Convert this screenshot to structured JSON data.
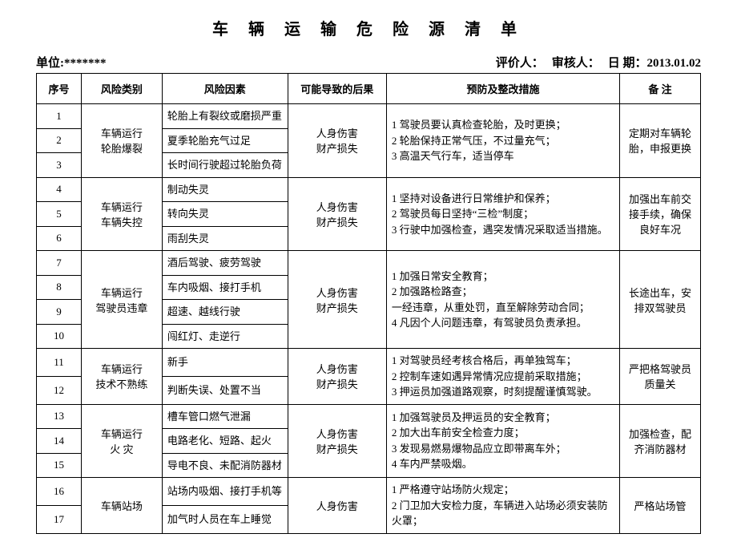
{
  "title": "车 辆 运 输 危 险 源 清 单",
  "header": {
    "unit_label": "单位:",
    "unit_value": "*******",
    "evaluator_label": "评价人：",
    "reviewer_label": "审核人：",
    "date_label": "日 期：",
    "date_value": "2013.01.02"
  },
  "columns": {
    "seq": "序号",
    "category": "风险类别",
    "factor": "风险因素",
    "result": "可能导致的后果",
    "prevent": "预防及整改措施",
    "remark": "备 注"
  },
  "groups": [
    {
      "category": "车辆运行\n轮胎爆裂",
      "result": "人身伤害\n财产损失",
      "prevent": "1 驾驶员要认真检查轮胎，及时更换；\n2 轮胎保持正常气压，不过量充气；\n3 高温天气行车，适当停车",
      "remark": "定期对车辆轮胎，申报更换",
      "rows": [
        {
          "seq": "1",
          "factor": "轮胎上有裂纹或磨损严重"
        },
        {
          "seq": "2",
          "factor": "夏季轮胎充气过足"
        },
        {
          "seq": "3",
          "factor": "长时间行驶超过轮胎负荷"
        }
      ]
    },
    {
      "category": "车辆运行\n车辆失控",
      "result": "人身伤害\n财产损失",
      "prevent": "1 坚持对设备进行日常维护和保养；\n2 驾驶员每日坚持“三检”制度；\n3 行驶中加强检查，遇突发情况采取适当措施。",
      "remark": "加强出车前交接手续，确保良好车况",
      "rows": [
        {
          "seq": "4",
          "factor": "制动失灵"
        },
        {
          "seq": "5",
          "factor": "转向失灵"
        },
        {
          "seq": "6",
          "factor": "雨刮失灵"
        }
      ]
    },
    {
      "category": "车辆运行\n驾驶员违章",
      "result": "人身伤害\n财产损失",
      "prevent": "1 加强日常安全教育；\n2 加强路检路查；\n一经违章，从重处罚，直至解除劳动合同；\n4 凡因个人问题违章，有驾驶员负责承担。",
      "remark": "长途出车，安排双驾驶员",
      "rows": [
        {
          "seq": "7",
          "factor": "酒后驾驶、疲劳驾驶"
        },
        {
          "seq": "8",
          "factor": "车内吸烟、接打手机"
        },
        {
          "seq": "9",
          "factor": "超速、越线行驶"
        },
        {
          "seq": "10",
          "factor": "闯红灯、走逆行"
        }
      ]
    },
    {
      "category": "车辆运行\n技术不熟练",
      "result": "人身伤害\n财产损失",
      "prevent": "1 对驾驶员经考核合格后，再单独驾车；　　　　2 控制车速如遇异常情况应提前采取措施；\n3 押运员加强道路观察，时刻提醒谨慎驾驶。",
      "remark": "严把格驾驶员质量关",
      "rows": [
        {
          "seq": "11",
          "factor": "新手"
        },
        {
          "seq": "12",
          "factor": "判断失误、处置不当"
        }
      ]
    },
    {
      "category": "车辆运行\n火 灾",
      "result": "人身伤害\n财产损失",
      "prevent": "1 加强驾驶员及押运员的安全教育；\n2 加大出车前安全检查力度；\n3 发现易燃易爆物品应立即带离车外；\n4 车内严禁吸烟。",
      "remark": "加强检查，配齐消防器材",
      "rows": [
        {
          "seq": "13",
          "factor": "槽车管口燃气泄漏"
        },
        {
          "seq": "14",
          "factor": "电路老化、短路、起火"
        },
        {
          "seq": "15",
          "factor": "导电不良、未配消防器材"
        }
      ]
    },
    {
      "category": "车辆站场",
      "result": "人身伤害",
      "prevent": "1 严格遵守站场防火规定；\n2 门卫加大安检力度，车辆进入站场必须安装防火罩；",
      "remark": "严格站场管",
      "rows": [
        {
          "seq": "16",
          "factor": "站场内吸烟、接打手机等"
        },
        {
          "seq": "17",
          "factor": "加气时人员在车上睡觉"
        }
      ]
    }
  ]
}
